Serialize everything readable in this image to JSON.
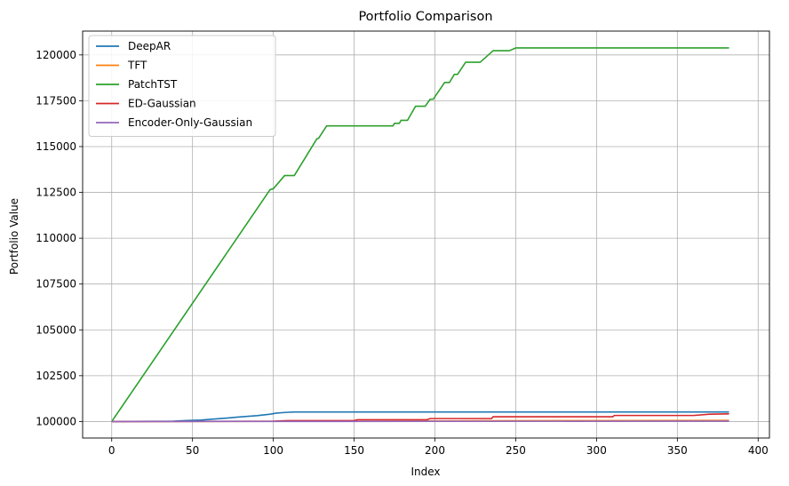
{
  "chart_data": {
    "type": "line",
    "title": "Portfolio Comparison",
    "xlabel": "Index",
    "ylabel": "Portfolio Value",
    "xlim": [
      -18,
      407
    ],
    "ylim": [
      99100,
      121300
    ],
    "xticks": [
      0,
      50,
      100,
      150,
      200,
      250,
      300,
      350,
      400
    ],
    "yticks": [
      100000,
      102500,
      105000,
      107500,
      110000,
      112500,
      115000,
      117500,
      120000
    ],
    "grid": true,
    "legend_position": "top-left",
    "series": [
      {
        "name": "DeepAR",
        "color": "#1f77b4",
        "points": [
          [
            0,
            100000
          ],
          [
            38,
            100020
          ],
          [
            45,
            100050
          ],
          [
            55,
            100080
          ],
          [
            70,
            100180
          ],
          [
            78,
            100240
          ],
          [
            90,
            100320
          ],
          [
            98,
            100400
          ],
          [
            102,
            100460
          ],
          [
            108,
            100500
          ],
          [
            113,
            100520
          ],
          [
            200,
            100520
          ],
          [
            382,
            100520
          ]
        ]
      },
      {
        "name": "TFT",
        "color": "#ff7f0e",
        "points": [
          [
            0,
            100000
          ],
          [
            100,
            100010
          ],
          [
            160,
            100020
          ],
          [
            240,
            100040
          ],
          [
            300,
            100050
          ],
          [
            382,
            100060
          ]
        ]
      },
      {
        "name": "PatchTST",
        "color": "#2ca02c",
        "points": [
          [
            0,
            100000
          ],
          [
            98,
            112650
          ],
          [
            100,
            112700
          ],
          [
            107,
            113420
          ],
          [
            113,
            113420
          ],
          [
            127,
            115430
          ],
          [
            128,
            115450
          ],
          [
            133,
            116130
          ],
          [
            174,
            116130
          ],
          [
            175,
            116270
          ],
          [
            178,
            116270
          ],
          [
            179,
            116430
          ],
          [
            183,
            116430
          ],
          [
            188,
            117200
          ],
          [
            194,
            117200
          ],
          [
            197,
            117580
          ],
          [
            199,
            117590
          ],
          [
            206,
            118500
          ],
          [
            209,
            118500
          ],
          [
            212,
            118940
          ],
          [
            214,
            118940
          ],
          [
            219,
            119600
          ],
          [
            228,
            119600
          ],
          [
            236,
            120230
          ],
          [
            246,
            120230
          ],
          [
            250,
            120380
          ],
          [
            382,
            120380
          ]
        ]
      },
      {
        "name": "ED-Gaussian",
        "color": "#d62728",
        "points": [
          [
            0,
            100000
          ],
          [
            100,
            100020
          ],
          [
            109,
            100050
          ],
          [
            150,
            100050
          ],
          [
            152,
            100100
          ],
          [
            195,
            100100
          ],
          [
            197,
            100160
          ],
          [
            235,
            100160
          ],
          [
            236,
            100260
          ],
          [
            310,
            100260
          ],
          [
            311,
            100330
          ],
          [
            360,
            100330
          ],
          [
            370,
            100400
          ],
          [
            382,
            100420
          ]
        ]
      },
      {
        "name": "Encoder-Only-Gaussian",
        "color": "#9467bd",
        "points": [
          [
            0,
            100000
          ],
          [
            200,
            100010
          ],
          [
            382,
            100020
          ]
        ]
      }
    ]
  }
}
